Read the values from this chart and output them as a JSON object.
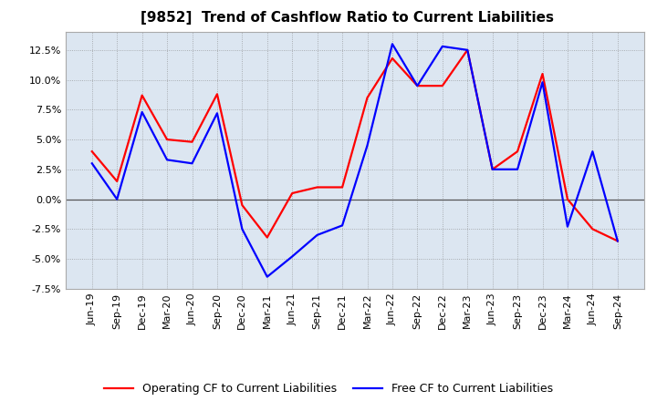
{
  "title": "[9852]  Trend of Cashflow Ratio to Current Liabilities",
  "x_labels": [
    "Jun-19",
    "Sep-19",
    "Dec-19",
    "Mar-20",
    "Jun-20",
    "Sep-20",
    "Dec-20",
    "Mar-21",
    "Jun-21",
    "Sep-21",
    "Dec-21",
    "Mar-22",
    "Jun-22",
    "Sep-22",
    "Dec-22",
    "Mar-23",
    "Jun-23",
    "Sep-23",
    "Dec-23",
    "Mar-24",
    "Jun-24",
    "Sep-24"
  ],
  "operating_cf": [
    4.0,
    1.5,
    8.7,
    5.0,
    4.8,
    8.8,
    -0.5,
    -3.2,
    0.5,
    1.0,
    1.0,
    8.5,
    11.8,
    9.5,
    9.5,
    12.5,
    2.5,
    4.0,
    10.5,
    0.0,
    -2.5,
    -3.5
  ],
  "free_cf": [
    3.0,
    0.0,
    7.3,
    3.3,
    3.0,
    7.2,
    -2.5,
    -6.5,
    -4.8,
    -3.0,
    -2.2,
    4.5,
    13.0,
    9.5,
    12.8,
    12.5,
    2.5,
    2.5,
    9.8,
    -2.3,
    4.0,
    -3.5
  ],
  "operating_cf_color": "#ff0000",
  "free_cf_color": "#0000ff",
  "ylim": [
    -7.5,
    14.0
  ],
  "yticks": [
    -7.5,
    -5.0,
    -2.5,
    0.0,
    2.5,
    5.0,
    7.5,
    10.0,
    12.5
  ],
  "background_color": "#ffffff",
  "plot_bg_color": "#dce6f1",
  "grid_color": "#7f7f7f",
  "title_fontsize": 11,
  "legend_fontsize": 9,
  "tick_fontsize": 8,
  "legend_operating": "Operating CF to Current Liabilities",
  "legend_free": "Free CF to Current Liabilities",
  "line_width": 1.6
}
